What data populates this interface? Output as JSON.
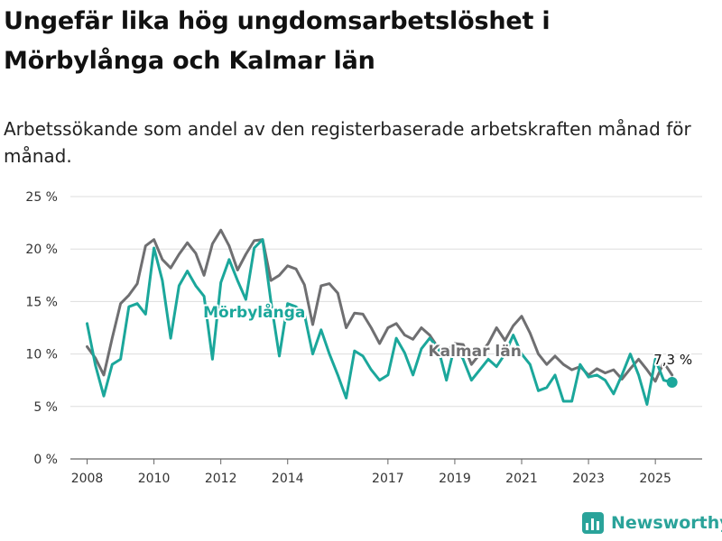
{
  "title": "Ungefär lika hög ungdomsarbetslöshet i Mörbylånga och Kalmar län",
  "subtitle": "Arbetssökande som andel av den registerbaserade arbetskraften månad för månad.",
  "brand": {
    "name": "Newsworthy",
    "icon": "bar-chart-logo-icon",
    "color": "#2aa39a"
  },
  "chart_data": {
    "type": "line",
    "title": "Ungefär lika hög ungdomsarbetslöshet i Mörbylånga och Kalmar län",
    "ylabel": "",
    "xlabel": "",
    "y_ticks": [
      0,
      5,
      10,
      15,
      20,
      25
    ],
    "y_tick_labels": [
      "0 %",
      "5 %",
      "10 %",
      "15 %",
      "20 %",
      "25 %"
    ],
    "ylim": [
      0,
      25
    ],
    "x_ticks": [
      2008,
      2010,
      2012,
      2014,
      2017,
      2019,
      2021,
      2023,
      2025
    ],
    "x_tick_labels": [
      "2008",
      "2010",
      "2012",
      "2014",
      "2017",
      "2019",
      "2021",
      "2023",
      "2025"
    ],
    "xlim": [
      2007.5,
      2026.4
    ],
    "grid": "horizontal",
    "end_label": "7,3 %",
    "series": [
      {
        "name": "Kalmar län",
        "color": "#6f6f71",
        "x": [
          2008.0,
          2008.25,
          2008.5,
          2008.75,
          2009.0,
          2009.25,
          2009.5,
          2009.75,
          2010.0,
          2010.25,
          2010.5,
          2010.75,
          2011.0,
          2011.25,
          2011.5,
          2011.75,
          2012.0,
          2012.25,
          2012.5,
          2012.75,
          2013.0,
          2013.25,
          2013.5,
          2013.75,
          2014.0,
          2014.25,
          2014.5,
          2014.75,
          2015.0,
          2015.25,
          2015.5,
          2015.75,
          2016.0,
          2016.25,
          2016.5,
          2016.75,
          2017.0,
          2017.25,
          2017.5,
          2017.75,
          2018.0,
          2018.25,
          2018.5,
          2018.75,
          2019.0,
          2019.25,
          2019.5,
          2019.75,
          2020.0,
          2020.25,
          2020.5,
          2020.75,
          2021.0,
          2021.25,
          2021.5,
          2021.75,
          2022.0,
          2022.25,
          2022.5,
          2022.75,
          2023.0,
          2023.25,
          2023.5,
          2023.75,
          2024.0,
          2024.25,
          2024.5,
          2024.75,
          2025.0,
          2025.25,
          2025.5
        ],
        "y": [
          10.7,
          9.6,
          8.0,
          11.5,
          14.8,
          15.6,
          16.7,
          20.3,
          20.9,
          19.0,
          18.2,
          19.5,
          20.6,
          19.6,
          17.5,
          20.5,
          21.8,
          20.3,
          18.0,
          19.5,
          20.8,
          20.9,
          17.0,
          17.5,
          18.4,
          18.1,
          16.6,
          12.8,
          16.5,
          16.7,
          15.8,
          12.5,
          13.9,
          13.8,
          12.5,
          11.0,
          12.5,
          12.9,
          11.8,
          11.4,
          12.5,
          11.8,
          10.6,
          10.2,
          11.0,
          10.9,
          9.0,
          10.0,
          11.0,
          12.5,
          11.3,
          12.7,
          13.6,
          12.0,
          10.0,
          9.0,
          9.8,
          9.0,
          8.5,
          8.8,
          8.0,
          8.6,
          8.2,
          8.5,
          7.6,
          8.6,
          9.5,
          8.5,
          7.4,
          9.2,
          8.0
        ]
      },
      {
        "name": "Mörbylånga",
        "color": "#1ba79b",
        "x": [
          2008.0,
          2008.25,
          2008.5,
          2008.75,
          2009.0,
          2009.25,
          2009.5,
          2009.75,
          2010.0,
          2010.25,
          2010.5,
          2010.75,
          2011.0,
          2011.25,
          2011.5,
          2011.75,
          2012.0,
          2012.25,
          2012.5,
          2012.75,
          2013.0,
          2013.25,
          2013.5,
          2013.75,
          2014.0,
          2014.25,
          2014.5,
          2014.75,
          2015.0,
          2015.25,
          2015.5,
          2015.75,
          2016.0,
          2016.25,
          2016.5,
          2016.75,
          2017.0,
          2017.25,
          2017.5,
          2017.75,
          2018.0,
          2018.25,
          2018.5,
          2018.75,
          2019.0,
          2019.25,
          2019.5,
          2019.75,
          2020.0,
          2020.25,
          2020.5,
          2020.75,
          2021.0,
          2021.25,
          2021.5,
          2021.75,
          2022.0,
          2022.25,
          2022.5,
          2022.75,
          2023.0,
          2023.25,
          2023.5,
          2023.75,
          2024.0,
          2024.25,
          2024.5,
          2024.75,
          2025.0,
          2025.25,
          2025.5
        ],
        "y": [
          12.9,
          8.9,
          6.0,
          9.0,
          9.5,
          14.5,
          14.8,
          13.8,
          20.1,
          17.0,
          11.5,
          16.5,
          17.9,
          16.5,
          15.5,
          9.5,
          16.8,
          19.0,
          17.0,
          15.2,
          20.1,
          20.9,
          15.0,
          9.8,
          14.8,
          14.5,
          13.8,
          10.0,
          12.3,
          10.0,
          8.0,
          5.8,
          10.3,
          9.8,
          8.5,
          7.5,
          8.0,
          11.5,
          10.1,
          8.0,
          10.5,
          11.5,
          10.6,
          7.5,
          10.8,
          9.5,
          7.5,
          8.5,
          9.5,
          8.8,
          10.0,
          11.8,
          10.0,
          9.0,
          6.5,
          6.8,
          8.0,
          5.5,
          5.5,
          9.0,
          7.8,
          8.0,
          7.5,
          6.2,
          8.0,
          10.0,
          8.0,
          5.2,
          9.5,
          7.5,
          7.3
        ]
      }
    ]
  }
}
